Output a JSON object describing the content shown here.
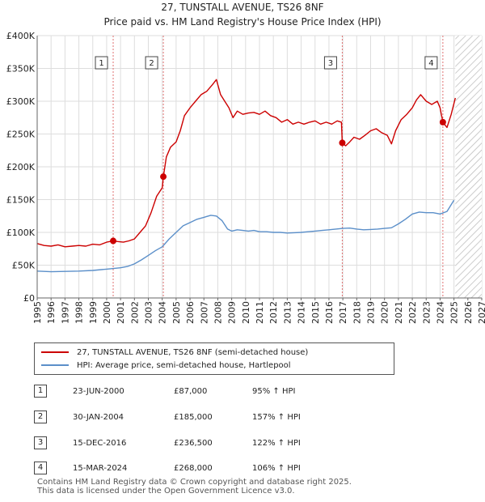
{
  "title_line1": "27, TUNSTALL AVENUE, TS26 8NF",
  "title_line2": "Price paid vs. HM Land Registry's House Price Index (HPI)",
  "chart_data": {
    "type": "line",
    "title": "27, TUNSTALL AVENUE, TS26 8NF — Price paid vs. HM Land Registry's House Price Index (HPI)",
    "xlabel": "",
    "ylabel": "",
    "xlim": [
      1995,
      2027
    ],
    "ylim": [
      0,
      400000
    ],
    "x_ticks": [
      1995,
      1996,
      1997,
      1998,
      1999,
      2000,
      2001,
      2002,
      2003,
      2004,
      2005,
      2006,
      2007,
      2008,
      2009,
      2010,
      2011,
      2012,
      2013,
      2014,
      2015,
      2016,
      2017,
      2018,
      2019,
      2020,
      2021,
      2022,
      2023,
      2024,
      2025,
      2026,
      2027
    ],
    "y_ticks": [
      0,
      50000,
      100000,
      150000,
      200000,
      250000,
      300000,
      350000,
      400000
    ],
    "y_tick_labels": [
      "£0",
      "£50K",
      "£100K",
      "£150K",
      "£200K",
      "£250K",
      "£300K",
      "£350K",
      "£400K"
    ],
    "grid": true,
    "future_hatch_start": 2025.1,
    "colors": {
      "price": "#cc0000",
      "hpi": "#5b8fc9",
      "vline": "#e07070",
      "grid": "#dddddd"
    },
    "series": [
      {
        "name": "27, TUNSTALL AVENUE, TS26 8NF (semi-detached house)",
        "color": "#cc0000",
        "x": [
          1995.0,
          1995.5,
          1996.0,
          1996.5,
          1997.0,
          1997.5,
          1998.0,
          1998.5,
          1999.0,
          1999.5,
          2000.0,
          2000.47,
          2000.8,
          2001.2,
          2001.6,
          2002.0,
          2002.4,
          2002.8,
          2003.2,
          2003.6,
          2004.0,
          2004.08,
          2004.3,
          2004.6,
          2005.0,
          2005.3,
          2005.6,
          2006.0,
          2006.4,
          2006.8,
          2007.2,
          2007.6,
          2007.9,
          2008.2,
          2008.5,
          2008.8,
          2009.1,
          2009.4,
          2009.8,
          2010.2,
          2010.6,
          2011.0,
          2011.4,
          2011.8,
          2012.2,
          2012.6,
          2013.0,
          2013.4,
          2013.8,
          2014.2,
          2014.6,
          2015.0,
          2015.4,
          2015.8,
          2016.2,
          2016.6,
          2016.9,
          2016.96,
          2017.2,
          2017.5,
          2017.8,
          2018.2,
          2018.6,
          2019.0,
          2019.4,
          2019.8,
          2020.2,
          2020.5,
          2020.8,
          2021.2,
          2021.6,
          2022.0,
          2022.3,
          2022.6,
          2023.0,
          2023.4,
          2023.8,
          2024.0,
          2024.2,
          2024.5,
          2024.8,
          2025.1
        ],
        "values": [
          83000,
          80000,
          79000,
          81000,
          78000,
          79000,
          80000,
          79000,
          82000,
          81000,
          85000,
          87000,
          86000,
          85000,
          87000,
          90000,
          100000,
          110000,
          130000,
          155000,
          168000,
          185000,
          215000,
          230000,
          238000,
          255000,
          278000,
          290000,
          300000,
          310000,
          315000,
          325000,
          333000,
          310000,
          300000,
          290000,
          275000,
          285000,
          280000,
          282000,
          283000,
          280000,
          285000,
          278000,
          275000,
          268000,
          272000,
          265000,
          268000,
          265000,
          268000,
          270000,
          265000,
          268000,
          265000,
          270000,
          268000,
          236500,
          232000,
          238000,
          245000,
          242000,
          248000,
          255000,
          258000,
          252000,
          248000,
          235000,
          255000,
          272000,
          280000,
          290000,
          302000,
          310000,
          300000,
          295000,
          300000,
          290000,
          268000,
          260000,
          280000,
          305000
        ]
      },
      {
        "name": "HPI: Average price, semi-detached house, Hartlepool",
        "color": "#5b8fc9",
        "x": [
          1995.0,
          1996.0,
          1997.0,
          1998.0,
          1999.0,
          2000.0,
          2000.5,
          2001.0,
          2001.5,
          2002.0,
          2002.5,
          2003.0,
          2003.5,
          2004.0,
          2004.5,
          2005.0,
          2005.5,
          2006.0,
          2006.5,
          2007.0,
          2007.5,
          2007.9,
          2008.3,
          2008.7,
          2009.0,
          2009.4,
          2009.8,
          2010.2,
          2010.6,
          2011.0,
          2011.5,
          2012.0,
          2012.5,
          2013.0,
          2013.5,
          2014.0,
          2014.5,
          2015.0,
          2015.5,
          2016.0,
          2016.5,
          2017.0,
          2017.5,
          2018.0,
          2018.5,
          2019.0,
          2019.5,
          2020.0,
          2020.5,
          2021.0,
          2021.5,
          2022.0,
          2022.5,
          2023.0,
          2023.5,
          2024.0,
          2024.5,
          2025.0
        ],
        "values": [
          41000,
          40000,
          40500,
          41000,
          42000,
          44000,
          45000,
          46000,
          48000,
          52000,
          58000,
          65000,
          72000,
          78000,
          90000,
          100000,
          110000,
          115000,
          120000,
          123000,
          126000,
          125000,
          118000,
          105000,
          102000,
          104000,
          103000,
          102000,
          103000,
          101000,
          101000,
          100000,
          100000,
          99000,
          99500,
          100000,
          101000,
          102000,
          103000,
          104000,
          105000,
          106000,
          106500,
          105000,
          104000,
          104500,
          105000,
          106000,
          107000,
          113000,
          120000,
          128000,
          131000,
          130000,
          130000,
          128000,
          132000,
          149000
        ]
      }
    ],
    "transactions": [
      {
        "n": "1",
        "x": 2000.47,
        "value": 87000
      },
      {
        "n": "2",
        "x": 2004.08,
        "value": 185000
      },
      {
        "n": "3",
        "x": 2016.96,
        "value": 236500
      },
      {
        "n": "4",
        "x": 2024.2,
        "value": 268000
      }
    ]
  },
  "legend": {
    "price_label": "27, TUNSTALL AVENUE, TS26 8NF (semi-detached house)",
    "hpi_label": "HPI: Average price, semi-detached house, Hartlepool"
  },
  "table": [
    {
      "n": "1",
      "date": "23-JUN-2000",
      "price": "£87,000",
      "hpi": "95% ↑ HPI"
    },
    {
      "n": "2",
      "date": "30-JAN-2004",
      "price": "£185,000",
      "hpi": "157% ↑ HPI"
    },
    {
      "n": "3",
      "date": "15-DEC-2016",
      "price": "£236,500",
      "hpi": "122% ↑ HPI"
    },
    {
      "n": "4",
      "date": "15-MAR-2024",
      "price": "£268,000",
      "hpi": "106% ↑ HPI"
    }
  ],
  "footer": {
    "line1": "Contains HM Land Registry data © Crown copyright and database right 2025.",
    "line2": "This data is licensed under the Open Government Licence v3.0."
  }
}
